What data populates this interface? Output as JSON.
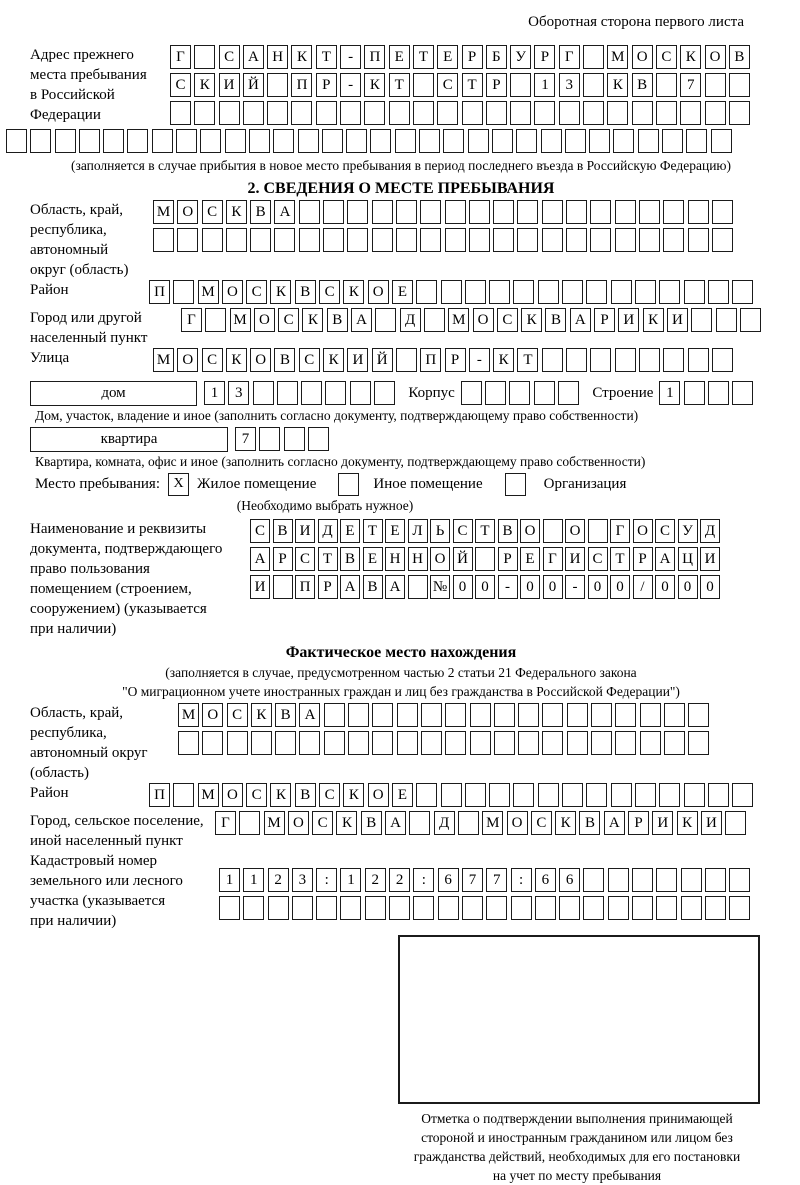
{
  "page": {
    "back_side_note": "Оборотная сторона первого листа"
  },
  "prev_address": {
    "label_lines": [
      "Адрес прежнего",
      "места пребывания",
      "в Российской",
      "Федерации"
    ],
    "rows": [
      [
        "Г",
        "",
        "С",
        "А",
        "Н",
        "К",
        "Т",
        "-",
        "П",
        "Е",
        "Т",
        "Е",
        "Р",
        "Б",
        "У",
        "Р",
        "Г",
        "",
        "М",
        "О",
        "С",
        "К",
        "О",
        "В"
      ],
      [
        "С",
        "К",
        "И",
        "Й",
        "",
        "П",
        "Р",
        "-",
        "К",
        "Т",
        "",
        "С",
        "Т",
        "Р",
        "",
        "1",
        "3",
        "",
        "К",
        "В",
        "",
        "7",
        "",
        ""
      ],
      [
        "",
        "",
        "",
        "",
        "",
        "",
        "",
        "",
        "",
        "",
        "",
        "",
        "",
        "",
        "",
        "",
        "",
        "",
        "",
        "",
        "",
        "",
        "",
        ""
      ]
    ],
    "extra_row": [
      "",
      "",
      "",
      "",
      "",
      "",
      "",
      "",
      "",
      "",
      "",
      "",
      "",
      "",
      "",
      "",
      "",
      "",
      "",
      "",
      "",
      "",
      "",
      "",
      "",
      "",
      "",
      "",
      "",
      ""
    ],
    "note": "(заполняется в случае прибытия в новое место пребывания в период последнего въезда в Российскую Федерацию)"
  },
  "section2": {
    "title": "2. СВЕДЕНИЯ О МЕСТЕ ПРЕБЫВАНИЯ",
    "region": {
      "label_lines": [
        "Область, край,",
        "республика,",
        "автономный",
        "округ (область)"
      ],
      "rows": [
        [
          "М",
          "О",
          "С",
          "К",
          "В",
          "А",
          "",
          "",
          "",
          "",
          "",
          "",
          "",
          "",
          "",
          "",
          "",
          "",
          "",
          "",
          "",
          "",
          "",
          ""
        ],
        [
          "",
          "",
          "",
          "",
          "",
          "",
          "",
          "",
          "",
          "",
          "",
          "",
          "",
          "",
          "",
          "",
          "",
          "",
          "",
          "",
          "",
          "",
          "",
          ""
        ]
      ]
    },
    "district": {
      "label": "Район",
      "row": [
        "П",
        "",
        "М",
        "О",
        "С",
        "К",
        "В",
        "С",
        "К",
        "О",
        "Е",
        "",
        "",
        "",
        "",
        "",
        "",
        "",
        "",
        "",
        "",
        "",
        "",
        "",
        ""
      ]
    },
    "city": {
      "label_lines": [
        "Город или другой",
        "населенный пункт"
      ],
      "row": [
        "Г",
        "",
        "М",
        "О",
        "С",
        "К",
        "В",
        "А",
        "",
        "Д",
        "",
        "М",
        "О",
        "С",
        "К",
        "В",
        "А",
        "Р",
        "И",
        "К",
        "И",
        "",
        "",
        ""
      ]
    },
    "street": {
      "label": "Улица",
      "row": [
        "М",
        "О",
        "С",
        "К",
        "О",
        "В",
        "С",
        "К",
        "И",
        "Й",
        "",
        "П",
        "Р",
        "-",
        "К",
        "Т",
        "",
        "",
        "",
        "",
        "",
        "",
        "",
        ""
      ]
    },
    "house": {
      "label": "дом",
      "cells": [
        "1",
        "3",
        "",
        "",
        "",
        "",
        "",
        ""
      ],
      "korpus_label": "Корпус",
      "korpus_cells": [
        "",
        "",
        "",
        "",
        ""
      ],
      "stroenie_label": "Строение",
      "stroenie_cells": [
        "1",
        "",
        "",
        ""
      ]
    },
    "house_note": "Дом, участок, владение и иное (заполнить согласно документу, подтверждающему право собственности)",
    "apartment": {
      "label": "квартира",
      "cells": [
        "7",
        "",
        "",
        ""
      ]
    },
    "apartment_note": "Квартира, комната, офис и иное (заполнить согласно документу, подтверждающему право собственности)",
    "stay_type": {
      "label": "Место пребывания:",
      "options": [
        {
          "label": "Жилое помещение",
          "checked": "X"
        },
        {
          "label": "Иное помещение",
          "checked": ""
        },
        {
          "label": "Организация",
          "checked": ""
        }
      ],
      "note": "(Необходимо выбрать нужное)"
    },
    "document": {
      "label_lines": [
        "Наименование и реквизиты",
        "документа, подтверждающего",
        "право пользования",
        "помещением (строением,",
        "сооружением) (указывается",
        "при наличии)"
      ],
      "rows": [
        [
          "С",
          "В",
          "И",
          "Д",
          "Е",
          "Т",
          "Е",
          "Л",
          "Ь",
          "С",
          "Т",
          "В",
          "О",
          "",
          "О",
          "",
          "Г",
          "О",
          "С",
          "У",
          "Д"
        ],
        [
          "А",
          "Р",
          "С",
          "Т",
          "В",
          "Е",
          "Н",
          "Н",
          "О",
          "Й",
          "",
          "Р",
          "Е",
          "Г",
          "И",
          "С",
          "Т",
          "Р",
          "А",
          "Ц",
          "И"
        ],
        [
          "И",
          "",
          "П",
          "Р",
          "А",
          "В",
          "А",
          "",
          "№",
          "0",
          "0",
          "-",
          "0",
          "0",
          "-",
          "0",
          "0",
          "/",
          "0",
          "0",
          "0"
        ]
      ]
    }
  },
  "actual_location": {
    "title": "Фактическое место нахождения",
    "note_lines": [
      "(заполняется в случае, предусмотренном частью 2 статьи 21 Федерального закона",
      "\"О миграционном учете иностранных граждан и лиц без гражданства в Российской Федерации\")"
    ],
    "region": {
      "label_lines": [
        "Область, край,",
        "республика,",
        "автономный округ",
        "(область)"
      ],
      "rows": [
        [
          "М",
          "О",
          "С",
          "К",
          "В",
          "А",
          "",
          "",
          "",
          "",
          "",
          "",
          "",
          "",
          "",
          "",
          "",
          "",
          "",
          "",
          "",
          ""
        ],
        [
          "",
          "",
          "",
          "",
          "",
          "",
          "",
          "",
          "",
          "",
          "",
          "",
          "",
          "",
          "",
          "",
          "",
          "",
          "",
          "",
          "",
          ""
        ]
      ]
    },
    "district": {
      "label": "Район",
      "row": [
        "П",
        "",
        "М",
        "О",
        "С",
        "К",
        "В",
        "С",
        "К",
        "О",
        "Е",
        "",
        "",
        "",
        "",
        "",
        "",
        "",
        "",
        "",
        "",
        "",
        "",
        "",
        ""
      ]
    },
    "city": {
      "label_lines": [
        "Город, сельское поселение,",
        "иной населенный пункт"
      ],
      "row": [
        "Г",
        "",
        "М",
        "О",
        "С",
        "К",
        "В",
        "А",
        "",
        "Д",
        "",
        "М",
        "О",
        "С",
        "К",
        "В",
        "А",
        "Р",
        "И",
        "К",
        "И",
        ""
      ]
    },
    "cadastral": {
      "label_lines": [
        "Кадастровый номер",
        "земельного или лесного",
        "участка (указывается",
        "при наличии)"
      ],
      "rows": [
        [
          "1",
          "1",
          "2",
          "3",
          ":",
          "1",
          "2",
          "2",
          ":",
          "6",
          "7",
          "7",
          ":",
          "6",
          "6",
          "",
          "",
          "",
          "",
          "",
          "",
          ""
        ],
        [
          "",
          "",
          "",
          "",
          "",
          "",
          "",
          "",
          "",
          "",
          "",
          "",
          "",
          "",
          "",
          "",
          "",
          "",
          "",
          "",
          "",
          ""
        ]
      ]
    },
    "stamp_caption_lines": [
      "Отметка о подтверждении выполнения принимающей",
      "стороной и иностранным гражданином или лицом без",
      "гражданства действий, необходимых для его постановки",
      "на учет по месту пребывания"
    ]
  }
}
